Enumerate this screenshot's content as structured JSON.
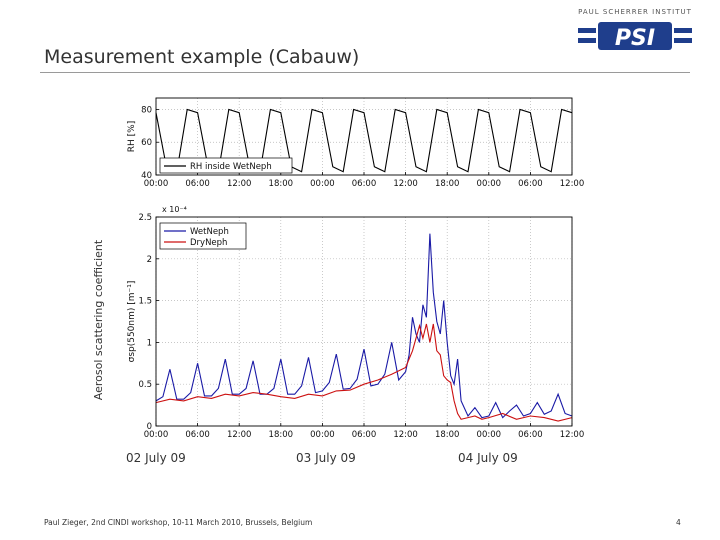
{
  "slide": {
    "title": "Measurement example (Cabauw)",
    "y_axis_outer_label": "Aerosol scattering coefficient",
    "day_labels": [
      "02 July 09",
      "03 July 09",
      "04 July 09"
    ],
    "footer": "Paul Zieger, 2nd CINDI workshop, 10-11 March 2010, Brussels, Belgium",
    "page_number": "4"
  },
  "logo": {
    "caption": "PAUL SCHERRER INSTITUT",
    "text": "PSI",
    "color": "#1f3e8c"
  },
  "chart_data": [
    {
      "type": "line",
      "ylabel": "RH [%]",
      "ylim": [
        40,
        87
      ],
      "yticks": [
        "40",
        "60",
        "80"
      ],
      "xlim": [
        0,
        60
      ],
      "xticks": [
        "00:00",
        "06:00",
        "12:00",
        "18:00",
        "00:00",
        "06:00",
        "12:00",
        "18:00",
        "00:00",
        "06:00",
        "12:00"
      ],
      "legend": {
        "position": "bottom-left",
        "entries": [
          "RH inside WetNeph"
        ]
      },
      "grid": true,
      "series": [
        {
          "name": "RH inside WetNeph",
          "color": "#000000",
          "x": [
            0,
            1.5,
            3,
            4.5,
            6,
            7.5,
            9,
            10.5,
            12,
            13.5,
            15,
            16.5,
            18,
            19.5,
            21,
            22.5,
            24,
            25.5,
            27,
            28.5,
            30,
            31.5,
            33,
            34.5,
            36,
            37.5,
            39,
            40.5,
            42,
            43.5,
            45,
            46.5,
            48,
            49.5,
            51,
            52.5,
            54,
            55.5,
            57,
            58.5,
            60
          ],
          "values": [
            78,
            45,
            42,
            80,
            78,
            45,
            42,
            80,
            78,
            45,
            42,
            80,
            78,
            45,
            42,
            80,
            78,
            45,
            42,
            80,
            78,
            45,
            42,
            80,
            78,
            45,
            42,
            80,
            78,
            45,
            42,
            80,
            78,
            45,
            42,
            80,
            78,
            45,
            42,
            80,
            78
          ]
        }
      ]
    },
    {
      "type": "line",
      "ylabel": "σsp(550nm) [m⁻¹]",
      "yscale_note": "x 10⁻⁴",
      "ylim": [
        0,
        2.5
      ],
      "yticks": [
        "0",
        "0.5",
        "1",
        "1.5",
        "2",
        "2.5"
      ],
      "xlim": [
        0,
        60
      ],
      "xticks": [
        "00:00",
        "06:00",
        "12:00",
        "18:00",
        "00:00",
        "06:00",
        "12:00",
        "18:00",
        "00:00",
        "06:00",
        "12:00"
      ],
      "legend": {
        "position": "top-left",
        "entries": [
          "WetNeph",
          "DryNeph"
        ]
      },
      "grid": true,
      "series": [
        {
          "name": "WetNeph",
          "color": "#1a1aa6",
          "x": [
            0,
            1,
            2,
            3,
            4,
            5,
            6,
            7,
            8,
            9,
            10,
            11,
            12,
            13,
            14,
            15,
            16,
            17,
            18,
            19,
            20,
            21,
            22,
            23,
            24,
            25,
            26,
            27,
            28,
            29,
            30,
            31,
            32,
            33,
            34,
            35,
            36,
            36.5,
            37,
            37.5,
            38,
            38.5,
            39,
            39.5,
            40,
            40.5,
            41,
            41.5,
            42,
            42.5,
            43,
            43.5,
            44,
            45,
            46,
            47,
            48,
            49,
            50,
            51,
            52,
            53,
            54,
            55,
            56,
            57,
            58,
            59,
            60
          ],
          "values": [
            0.3,
            0.35,
            0.68,
            0.32,
            0.32,
            0.4,
            0.75,
            0.36,
            0.36,
            0.45,
            0.8,
            0.38,
            0.38,
            0.45,
            0.78,
            0.38,
            0.38,
            0.45,
            0.8,
            0.38,
            0.38,
            0.48,
            0.82,
            0.4,
            0.42,
            0.52,
            0.86,
            0.44,
            0.45,
            0.56,
            0.92,
            0.48,
            0.5,
            0.62,
            1.0,
            0.55,
            0.65,
            0.85,
            1.3,
            1.1,
            1.0,
            1.45,
            1.3,
            2.3,
            1.6,
            1.25,
            1.1,
            1.5,
            1.0,
            0.6,
            0.5,
            0.8,
            0.3,
            0.12,
            0.22,
            0.1,
            0.12,
            0.28,
            0.1,
            0.18,
            0.25,
            0.12,
            0.15,
            0.28,
            0.14,
            0.18,
            0.38,
            0.15,
            0.12
          ]
        },
        {
          "name": "DryNeph",
          "color": "#cc1111",
          "x": [
            0,
            2,
            4,
            6,
            8,
            10,
            12,
            14,
            16,
            18,
            20,
            22,
            24,
            26,
            28,
            30,
            32,
            34,
            36,
            37,
            38,
            38.5,
            39,
            39.5,
            40,
            40.5,
            41,
            41.5,
            42,
            42.5,
            43,
            43.5,
            44,
            45,
            46,
            47,
            48,
            50,
            52,
            54,
            56,
            58,
            60
          ],
          "values": [
            0.28,
            0.32,
            0.3,
            0.35,
            0.33,
            0.38,
            0.36,
            0.4,
            0.38,
            0.35,
            0.33,
            0.38,
            0.36,
            0.42,
            0.43,
            0.5,
            0.55,
            0.62,
            0.7,
            0.9,
            1.2,
            1.05,
            1.22,
            1.0,
            1.22,
            0.9,
            0.85,
            0.6,
            0.55,
            0.52,
            0.3,
            0.15,
            0.08,
            0.1,
            0.12,
            0.08,
            0.1,
            0.15,
            0.08,
            0.12,
            0.1,
            0.06,
            0.1
          ]
        }
      ]
    }
  ]
}
